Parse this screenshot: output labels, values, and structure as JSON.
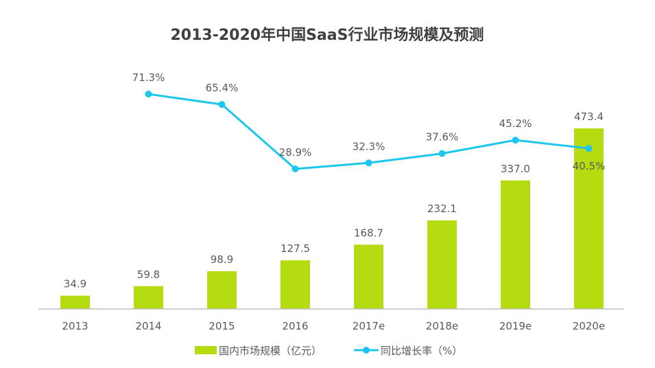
{
  "chart_data": {
    "type": "bar+line",
    "title": "2013-2020年中国SaaS行业市场规模及预测",
    "categories": [
      "2013",
      "2014",
      "2015",
      "2016",
      "2017e",
      "2018e",
      "2019e",
      "2020e"
    ],
    "series": [
      {
        "name": "国内市场规模（亿元）",
        "type": "bar",
        "color": "#b5dc10",
        "values": [
          34.9,
          59.8,
          98.9,
          127.5,
          168.7,
          232.1,
          337.0,
          473.4
        ],
        "labels": [
          "34.9",
          "59.8",
          "98.9",
          "127.5",
          "168.7",
          "232.1",
          "337.0",
          "473.4"
        ]
      },
      {
        "name": "同比增长率（%）",
        "type": "line",
        "color": "#1cc6ec",
        "values": [
          null,
          71.3,
          65.4,
          28.9,
          32.3,
          37.6,
          45.2,
          40.5
        ],
        "labels": [
          "",
          "71.3%",
          "65.4%",
          "28.9%",
          "32.3%",
          "37.6%",
          "45.2%",
          "40.5%"
        ]
      }
    ],
    "legend": "bottom",
    "grid": false
  }
}
